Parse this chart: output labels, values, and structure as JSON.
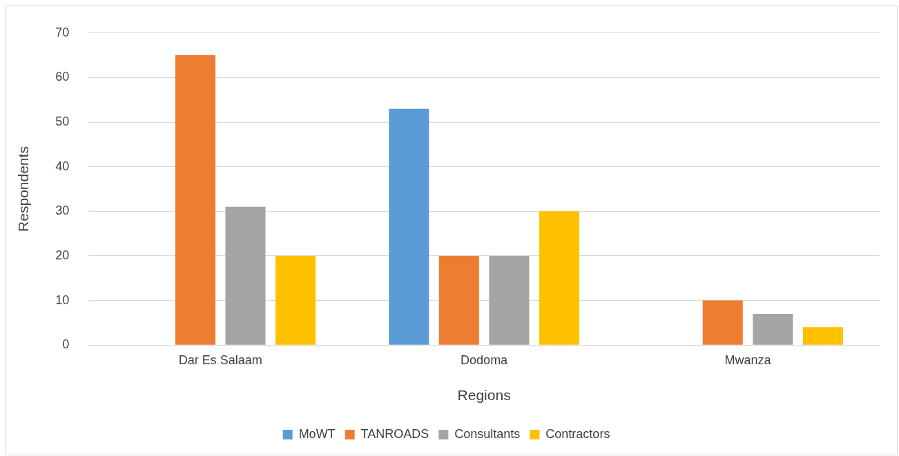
{
  "chart_data": {
    "type": "bar",
    "xlabel": "Regions",
    "ylabel": "Respondents",
    "categories": [
      "Dar Es Salaam",
      "Dodoma",
      "Mwanza"
    ],
    "series": [
      {
        "name": "MoWT",
        "color": "#5b9bd5",
        "values": [
          0,
          53,
          0
        ]
      },
      {
        "name": "TANROADS",
        "color": "#ed7d31",
        "values": [
          65,
          20,
          10
        ]
      },
      {
        "name": "Consultants",
        "color": "#a5a5a5",
        "values": [
          31,
          20,
          7
        ]
      },
      {
        "name": "Contractors",
        "color": "#ffc000",
        "values": [
          20,
          30,
          4
        ]
      }
    ],
    "ylim": [
      0,
      70
    ],
    "yticks": [
      0,
      10,
      20,
      30,
      40,
      50,
      60,
      70
    ],
    "grid": "y",
    "legend": "bottom"
  }
}
